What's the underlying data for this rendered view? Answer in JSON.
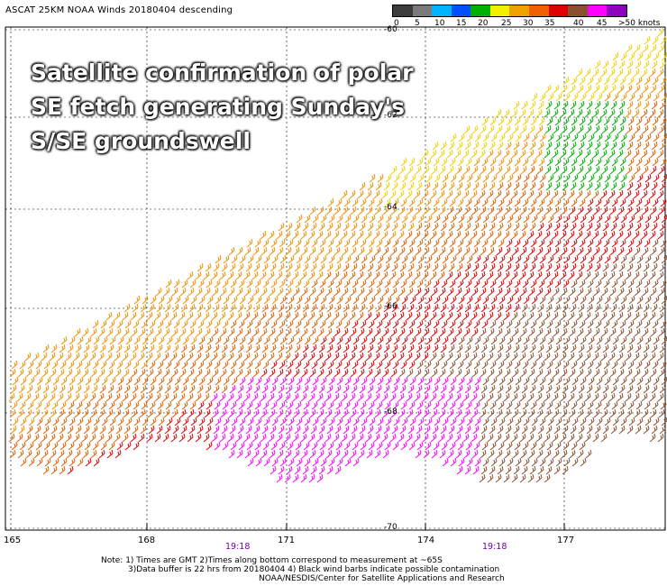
{
  "title": "ASCAT 25KM NOAA Winds 20180404 descending",
  "headline": [
    "Satellite confirmation of polar",
    "SE fetch generating Sunday's",
    "S/SE groundswell"
  ],
  "colorbar": {
    "labels": [
      "0",
      "5",
      "10",
      "15",
      "20",
      "25",
      "30",
      "35",
      "40",
      "45",
      ">50 knots"
    ],
    "colors": [
      "#3c3c3c",
      "#7a7a7a",
      "#00b4ff",
      "#0050ff",
      "#00b000",
      "#f0f000",
      "#f0a000",
      "#f06000",
      "#e00000",
      "#8b5030",
      "#ff00ff",
      "#9000c0"
    ]
  },
  "axes": {
    "x_ticks": [
      "165",
      "168",
      "171",
      "174",
      "177"
    ],
    "y_ticks": [
      "-60",
      "-62",
      "-64",
      "-66",
      "-68",
      "-70"
    ]
  },
  "times": [
    "19:18",
    "19:18"
  ],
  "note": [
    "Note: 1) Times are GMT 2)Times along bottom correspond to measurement at ~65S",
    "3)Data buffer is 22 hrs from 20180404 4) Black wind barbs indicate possible contamination",
    "NOAA/NESDIS/Center for Satellite Applications and Research"
  ],
  "wind_colors": {
    "calm_green": "#00b000",
    "yellow": "#f0d000",
    "orange": "#f09000",
    "dark_orange": "#e06000",
    "red": "#e00000",
    "brown": "#8b5030",
    "magenta": "#ff00ff",
    "purple": "#9000c0"
  }
}
